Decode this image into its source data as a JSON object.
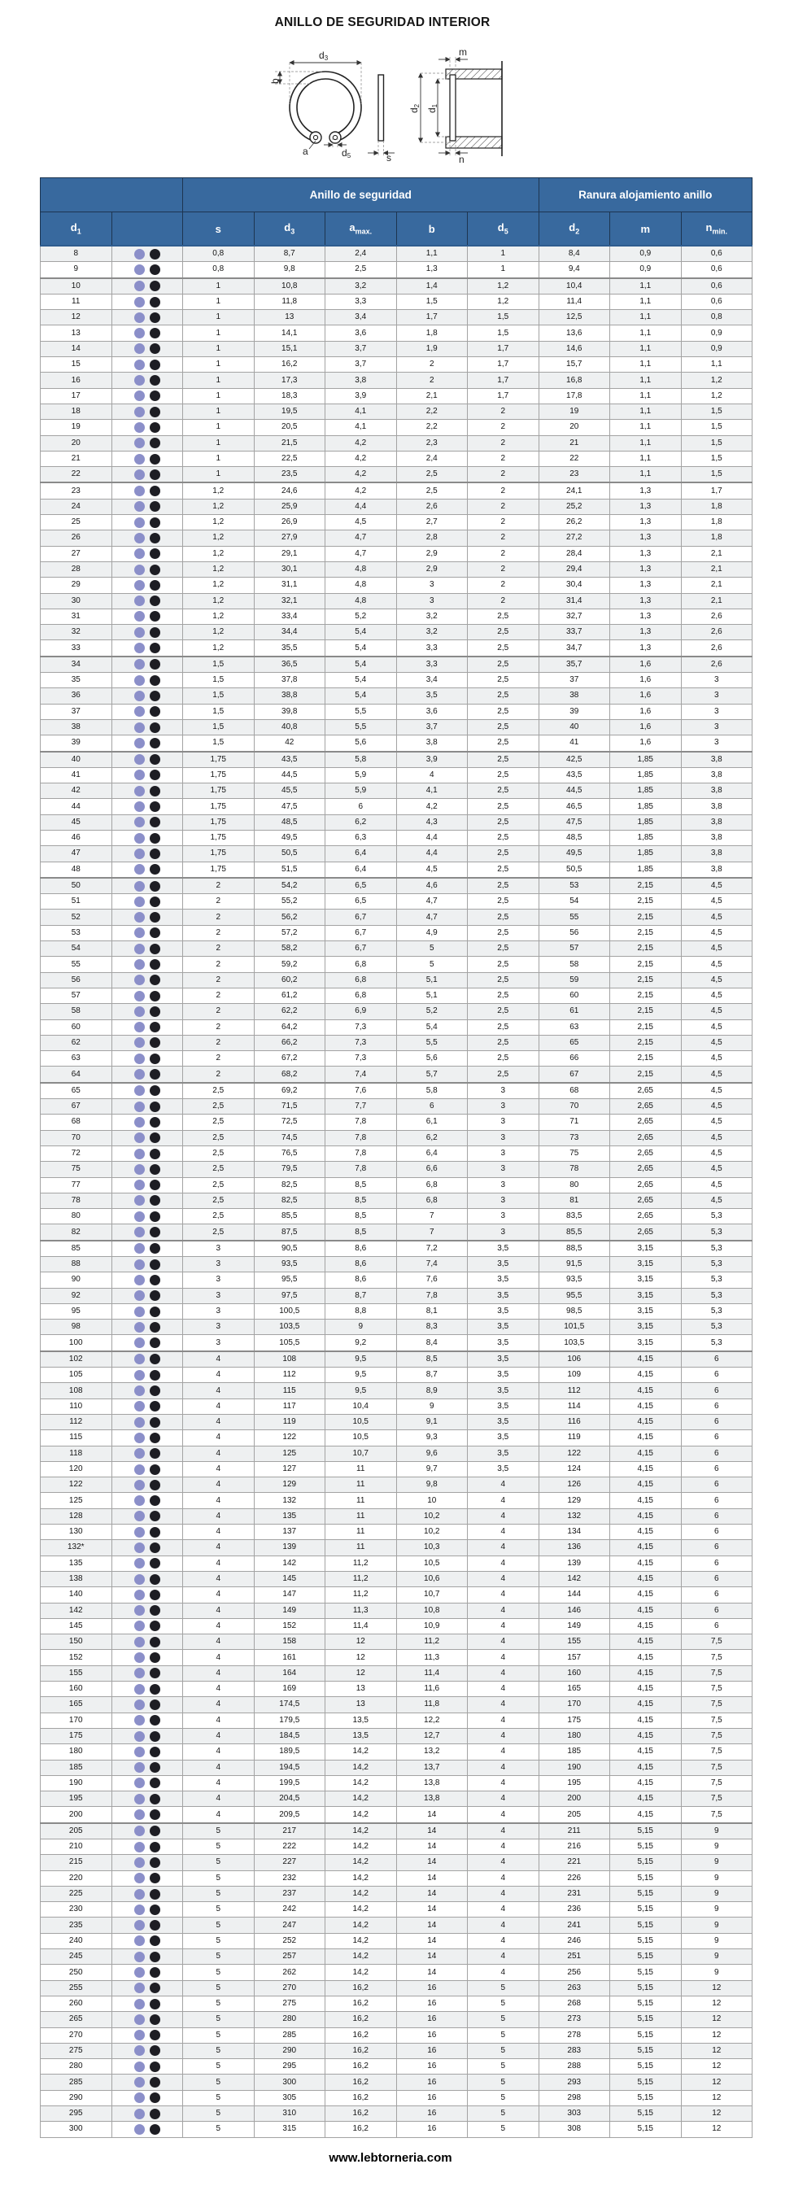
{
  "page": {
    "title": "ANILLO DE SEGURIDAD INTERIOR",
    "footer_url": "www.lebtorneria.com"
  },
  "colors": {
    "header_bg": "#38699e",
    "header_border": "#1d3550",
    "dot_lavender": "#8b8fc9",
    "dot_black": "#1e1e24",
    "row_stripe": "#eef0f1"
  },
  "diagram": {
    "labels": {
      "d3": {
        "main": "d",
        "sub": "3"
      },
      "b": {
        "main": "b",
        "sub": ""
      },
      "a": {
        "main": "a",
        "sub": ""
      },
      "d5": {
        "main": "d",
        "sub": "5"
      },
      "s": {
        "main": "s",
        "sub": ""
      },
      "m": {
        "main": "m",
        "sub": ""
      },
      "d2": {
        "main": "d",
        "sub": "2"
      },
      "d1": {
        "main": "d",
        "sub": "1"
      },
      "n": {
        "main": "n",
        "sub": ""
      }
    }
  },
  "table": {
    "group_headers": [
      {
        "label": "",
        "span": 2
      },
      {
        "label": "Anillo de seguridad",
        "span": 5
      },
      {
        "label": "Ranura alojamiento anillo",
        "span": 3
      }
    ],
    "columns": [
      {
        "main": "d",
        "sub": "1"
      },
      {
        "main": "",
        "sub": ""
      },
      {
        "main": "s",
        "sub": ""
      },
      {
        "main": "d",
        "sub": "3"
      },
      {
        "main": "a",
        "sub": "max."
      },
      {
        "main": "b",
        "sub": ""
      },
      {
        "main": "d",
        "sub": "5"
      },
      {
        "main": "d",
        "sub": "2"
      },
      {
        "main": "m",
        "sub": ""
      },
      {
        "main": "n",
        "sub": "min."
      }
    ],
    "rows": [
      [
        "8",
        "0,8",
        "8,7",
        "2,4",
        "1,1",
        "1",
        "8,4",
        "0,9",
        "0,6"
      ],
      [
        "9",
        "0,8",
        "9,8",
        "2,5",
        "1,3",
        "1",
        "9,4",
        "0,9",
        "0,6"
      ],
      [
        "10",
        "1",
        "10,8",
        "3,2",
        "1,4",
        "1,2",
        "10,4",
        "1,1",
        "0,6"
      ],
      [
        "11",
        "1",
        "11,8",
        "3,3",
        "1,5",
        "1,2",
        "11,4",
        "1,1",
        "0,6"
      ],
      [
        "12",
        "1",
        "13",
        "3,4",
        "1,7",
        "1,5",
        "12,5",
        "1,1",
        "0,8"
      ],
      [
        "13",
        "1",
        "14,1",
        "3,6",
        "1,8",
        "1,5",
        "13,6",
        "1,1",
        "0,9"
      ],
      [
        "14",
        "1",
        "15,1",
        "3,7",
        "1,9",
        "1,7",
        "14,6",
        "1,1",
        "0,9"
      ],
      [
        "15",
        "1",
        "16,2",
        "3,7",
        "2",
        "1,7",
        "15,7",
        "1,1",
        "1,1"
      ],
      [
        "16",
        "1",
        "17,3",
        "3,8",
        "2",
        "1,7",
        "16,8",
        "1,1",
        "1,2"
      ],
      [
        "17",
        "1",
        "18,3",
        "3,9",
        "2,1",
        "1,7",
        "17,8",
        "1,1",
        "1,2"
      ],
      [
        "18",
        "1",
        "19,5",
        "4,1",
        "2,2",
        "2",
        "19",
        "1,1",
        "1,5"
      ],
      [
        "19",
        "1",
        "20,5",
        "4,1",
        "2,2",
        "2",
        "20",
        "1,1",
        "1,5"
      ],
      [
        "20",
        "1",
        "21,5",
        "4,2",
        "2,3",
        "2",
        "21",
        "1,1",
        "1,5"
      ],
      [
        "21",
        "1",
        "22,5",
        "4,2",
        "2,4",
        "2",
        "22",
        "1,1",
        "1,5"
      ],
      [
        "22",
        "1",
        "23,5",
        "4,2",
        "2,5",
        "2",
        "23",
        "1,1",
        "1,5"
      ],
      [
        "23",
        "1,2",
        "24,6",
        "4,2",
        "2,5",
        "2",
        "24,1",
        "1,3",
        "1,7"
      ],
      [
        "24",
        "1,2",
        "25,9",
        "4,4",
        "2,6",
        "2",
        "25,2",
        "1,3",
        "1,8"
      ],
      [
        "25",
        "1,2",
        "26,9",
        "4,5",
        "2,7",
        "2",
        "26,2",
        "1,3",
        "1,8"
      ],
      [
        "26",
        "1,2",
        "27,9",
        "4,7",
        "2,8",
        "2",
        "27,2",
        "1,3",
        "1,8"
      ],
      [
        "27",
        "1,2",
        "29,1",
        "4,7",
        "2,9",
        "2",
        "28,4",
        "1,3",
        "2,1"
      ],
      [
        "28",
        "1,2",
        "30,1",
        "4,8",
        "2,9",
        "2",
        "29,4",
        "1,3",
        "2,1"
      ],
      [
        "29",
        "1,2",
        "31,1",
        "4,8",
        "3",
        "2",
        "30,4",
        "1,3",
        "2,1"
      ],
      [
        "30",
        "1,2",
        "32,1",
        "4,8",
        "3",
        "2",
        "31,4",
        "1,3",
        "2,1"
      ],
      [
        "31",
        "1,2",
        "33,4",
        "5,2",
        "3,2",
        "2,5",
        "32,7",
        "1,3",
        "2,6"
      ],
      [
        "32",
        "1,2",
        "34,4",
        "5,4",
        "3,2",
        "2,5",
        "33,7",
        "1,3",
        "2,6"
      ],
      [
        "33",
        "1,2",
        "35,5",
        "5,4",
        "3,3",
        "2,5",
        "34,7",
        "1,3",
        "2,6"
      ],
      [
        "34",
        "1,5",
        "36,5",
        "5,4",
        "3,3",
        "2,5",
        "35,7",
        "1,6",
        "2,6"
      ],
      [
        "35",
        "1,5",
        "37,8",
        "5,4",
        "3,4",
        "2,5",
        "37",
        "1,6",
        "3"
      ],
      [
        "36",
        "1,5",
        "38,8",
        "5,4",
        "3,5",
        "2,5",
        "38",
        "1,6",
        "3"
      ],
      [
        "37",
        "1,5",
        "39,8",
        "5,5",
        "3,6",
        "2,5",
        "39",
        "1,6",
        "3"
      ],
      [
        "38",
        "1,5",
        "40,8",
        "5,5",
        "3,7",
        "2,5",
        "40",
        "1,6",
        "3"
      ],
      [
        "39",
        "1,5",
        "42",
        "5,6",
        "3,8",
        "2,5",
        "41",
        "1,6",
        "3"
      ],
      [
        "40",
        "1,75",
        "43,5",
        "5,8",
        "3,9",
        "2,5",
        "42,5",
        "1,85",
        "3,8"
      ],
      [
        "41",
        "1,75",
        "44,5",
        "5,9",
        "4",
        "2,5",
        "43,5",
        "1,85",
        "3,8"
      ],
      [
        "42",
        "1,75",
        "45,5",
        "5,9",
        "4,1",
        "2,5",
        "44,5",
        "1,85",
        "3,8"
      ],
      [
        "44",
        "1,75",
        "47,5",
        "6",
        "4,2",
        "2,5",
        "46,5",
        "1,85",
        "3,8"
      ],
      [
        "45",
        "1,75",
        "48,5",
        "6,2",
        "4,3",
        "2,5",
        "47,5",
        "1,85",
        "3,8"
      ],
      [
        "46",
        "1,75",
        "49,5",
        "6,3",
        "4,4",
        "2,5",
        "48,5",
        "1,85",
        "3,8"
      ],
      [
        "47",
        "1,75",
        "50,5",
        "6,4",
        "4,4",
        "2,5",
        "49,5",
        "1,85",
        "3,8"
      ],
      [
        "48",
        "1,75",
        "51,5",
        "6,4",
        "4,5",
        "2,5",
        "50,5",
        "1,85",
        "3,8"
      ],
      [
        "50",
        "2",
        "54,2",
        "6,5",
        "4,6",
        "2,5",
        "53",
        "2,15",
        "4,5"
      ],
      [
        "51",
        "2",
        "55,2",
        "6,5",
        "4,7",
        "2,5",
        "54",
        "2,15",
        "4,5"
      ],
      [
        "52",
        "2",
        "56,2",
        "6,7",
        "4,7",
        "2,5",
        "55",
        "2,15",
        "4,5"
      ],
      [
        "53",
        "2",
        "57,2",
        "6,7",
        "4,9",
        "2,5",
        "56",
        "2,15",
        "4,5"
      ],
      [
        "54",
        "2",
        "58,2",
        "6,7",
        "5",
        "2,5",
        "57",
        "2,15",
        "4,5"
      ],
      [
        "55",
        "2",
        "59,2",
        "6,8",
        "5",
        "2,5",
        "58",
        "2,15",
        "4,5"
      ],
      [
        "56",
        "2",
        "60,2",
        "6,8",
        "5,1",
        "2,5",
        "59",
        "2,15",
        "4,5"
      ],
      [
        "57",
        "2",
        "61,2",
        "6,8",
        "5,1",
        "2,5",
        "60",
        "2,15",
        "4,5"
      ],
      [
        "58",
        "2",
        "62,2",
        "6,9",
        "5,2",
        "2,5",
        "61",
        "2,15",
        "4,5"
      ],
      [
        "60",
        "2",
        "64,2",
        "7,3",
        "5,4",
        "2,5",
        "63",
        "2,15",
        "4,5"
      ],
      [
        "62",
        "2",
        "66,2",
        "7,3",
        "5,5",
        "2,5",
        "65",
        "2,15",
        "4,5"
      ],
      [
        "63",
        "2",
        "67,2",
        "7,3",
        "5,6",
        "2,5",
        "66",
        "2,15",
        "4,5"
      ],
      [
        "64",
        "2",
        "68,2",
        "7,4",
        "5,7",
        "2,5",
        "67",
        "2,15",
        "4,5"
      ],
      [
        "65",
        "2,5",
        "69,2",
        "7,6",
        "5,8",
        "3",
        "68",
        "2,65",
        "4,5"
      ],
      [
        "67",
        "2,5",
        "71,5",
        "7,7",
        "6",
        "3",
        "70",
        "2,65",
        "4,5"
      ],
      [
        "68",
        "2,5",
        "72,5",
        "7,8",
        "6,1",
        "3",
        "71",
        "2,65",
        "4,5"
      ],
      [
        "70",
        "2,5",
        "74,5",
        "7,8",
        "6,2",
        "3",
        "73",
        "2,65",
        "4,5"
      ],
      [
        "72",
        "2,5",
        "76,5",
        "7,8",
        "6,4",
        "3",
        "75",
        "2,65",
        "4,5"
      ],
      [
        "75",
        "2,5",
        "79,5",
        "7,8",
        "6,6",
        "3",
        "78",
        "2,65",
        "4,5"
      ],
      [
        "77",
        "2,5",
        "82,5",
        "8,5",
        "6,8",
        "3",
        "80",
        "2,65",
        "4,5"
      ],
      [
        "78",
        "2,5",
        "82,5",
        "8,5",
        "6,8",
        "3",
        "81",
        "2,65",
        "4,5"
      ],
      [
        "80",
        "2,5",
        "85,5",
        "8,5",
        "7",
        "3",
        "83,5",
        "2,65",
        "5,3"
      ],
      [
        "82",
        "2,5",
        "87,5",
        "8,5",
        "7",
        "3",
        "85,5",
        "2,65",
        "5,3"
      ],
      [
        "85",
        "3",
        "90,5",
        "8,6",
        "7,2",
        "3,5",
        "88,5",
        "3,15",
        "5,3"
      ],
      [
        "88",
        "3",
        "93,5",
        "8,6",
        "7,4",
        "3,5",
        "91,5",
        "3,15",
        "5,3"
      ],
      [
        "90",
        "3",
        "95,5",
        "8,6",
        "7,6",
        "3,5",
        "93,5",
        "3,15",
        "5,3"
      ],
      [
        "92",
        "3",
        "97,5",
        "8,7",
        "7,8",
        "3,5",
        "95,5",
        "3,15",
        "5,3"
      ],
      [
        "95",
        "3",
        "100,5",
        "8,8",
        "8,1",
        "3,5",
        "98,5",
        "3,15",
        "5,3"
      ],
      [
        "98",
        "3",
        "103,5",
        "9",
        "8,3",
        "3,5",
        "101,5",
        "3,15",
        "5,3"
      ],
      [
        "100",
        "3",
        "105,5",
        "9,2",
        "8,4",
        "3,5",
        "103,5",
        "3,15",
        "5,3"
      ],
      [
        "102",
        "4",
        "108",
        "9,5",
        "8,5",
        "3,5",
        "106",
        "4,15",
        "6"
      ],
      [
        "105",
        "4",
        "112",
        "9,5",
        "8,7",
        "3,5",
        "109",
        "4,15",
        "6"
      ],
      [
        "108",
        "4",
        "115",
        "9,5",
        "8,9",
        "3,5",
        "112",
        "4,15",
        "6"
      ],
      [
        "110",
        "4",
        "117",
        "10,4",
        "9",
        "3,5",
        "114",
        "4,15",
        "6"
      ],
      [
        "112",
        "4",
        "119",
        "10,5",
        "9,1",
        "3,5",
        "116",
        "4,15",
        "6"
      ],
      [
        "115",
        "4",
        "122",
        "10,5",
        "9,3",
        "3,5",
        "119",
        "4,15",
        "6"
      ],
      [
        "118",
        "4",
        "125",
        "10,7",
        "9,6",
        "3,5",
        "122",
        "4,15",
        "6"
      ],
      [
        "120",
        "4",
        "127",
        "11",
        "9,7",
        "3,5",
        "124",
        "4,15",
        "6"
      ],
      [
        "122",
        "4",
        "129",
        "11",
        "9,8",
        "4",
        "126",
        "4,15",
        "6"
      ],
      [
        "125",
        "4",
        "132",
        "11",
        "10",
        "4",
        "129",
        "4,15",
        "6"
      ],
      [
        "128",
        "4",
        "135",
        "11",
        "10,2",
        "4",
        "132",
        "4,15",
        "6"
      ],
      [
        "130",
        "4",
        "137",
        "11",
        "10,2",
        "4",
        "134",
        "4,15",
        "6"
      ],
      [
        "132*",
        "4",
        "139",
        "11",
        "10,3",
        "4",
        "136",
        "4,15",
        "6"
      ],
      [
        "135",
        "4",
        "142",
        "11,2",
        "10,5",
        "4",
        "139",
        "4,15",
        "6"
      ],
      [
        "138",
        "4",
        "145",
        "11,2",
        "10,6",
        "4",
        "142",
        "4,15",
        "6"
      ],
      [
        "140",
        "4",
        "147",
        "11,2",
        "10,7",
        "4",
        "144",
        "4,15",
        "6"
      ],
      [
        "142",
        "4",
        "149",
        "11,3",
        "10,8",
        "4",
        "146",
        "4,15",
        "6"
      ],
      [
        "145",
        "4",
        "152",
        "11,4",
        "10,9",
        "4",
        "149",
        "4,15",
        "6"
      ],
      [
        "150",
        "4",
        "158",
        "12",
        "11,2",
        "4",
        "155",
        "4,15",
        "7,5"
      ],
      [
        "152",
        "4",
        "161",
        "12",
        "11,3",
        "4",
        "157",
        "4,15",
        "7,5"
      ],
      [
        "155",
        "4",
        "164",
        "12",
        "11,4",
        "4",
        "160",
        "4,15",
        "7,5"
      ],
      [
        "160",
        "4",
        "169",
        "13",
        "11,6",
        "4",
        "165",
        "4,15",
        "7,5"
      ],
      [
        "165",
        "4",
        "174,5",
        "13",
        "11,8",
        "4",
        "170",
        "4,15",
        "7,5"
      ],
      [
        "170",
        "4",
        "179,5",
        "13,5",
        "12,2",
        "4",
        "175",
        "4,15",
        "7,5"
      ],
      [
        "175",
        "4",
        "184,5",
        "13,5",
        "12,7",
        "4",
        "180",
        "4,15",
        "7,5"
      ],
      [
        "180",
        "4",
        "189,5",
        "14,2",
        "13,2",
        "4",
        "185",
        "4,15",
        "7,5"
      ],
      [
        "185",
        "4",
        "194,5",
        "14,2",
        "13,7",
        "4",
        "190",
        "4,15",
        "7,5"
      ],
      [
        "190",
        "4",
        "199,5",
        "14,2",
        "13,8",
        "4",
        "195",
        "4,15",
        "7,5"
      ],
      [
        "195",
        "4",
        "204,5",
        "14,2",
        "13,8",
        "4",
        "200",
        "4,15",
        "7,5"
      ],
      [
        "200",
        "4",
        "209,5",
        "14,2",
        "14",
        "4",
        "205",
        "4,15",
        "7,5"
      ],
      [
        "205",
        "5",
        "217",
        "14,2",
        "14",
        "4",
        "211",
        "5,15",
        "9"
      ],
      [
        "210",
        "5",
        "222",
        "14,2",
        "14",
        "4",
        "216",
        "5,15",
        "9"
      ],
      [
        "215",
        "5",
        "227",
        "14,2",
        "14",
        "4",
        "221",
        "5,15",
        "9"
      ],
      [
        "220",
        "5",
        "232",
        "14,2",
        "14",
        "4",
        "226",
        "5,15",
        "9"
      ],
      [
        "225",
        "5",
        "237",
        "14,2",
        "14",
        "4",
        "231",
        "5,15",
        "9"
      ],
      [
        "230",
        "5",
        "242",
        "14,2",
        "14",
        "4",
        "236",
        "5,15",
        "9"
      ],
      [
        "235",
        "5",
        "247",
        "14,2",
        "14",
        "4",
        "241",
        "5,15",
        "9"
      ],
      [
        "240",
        "5",
        "252",
        "14,2",
        "14",
        "4",
        "246",
        "5,15",
        "9"
      ],
      [
        "245",
        "5",
        "257",
        "14,2",
        "14",
        "4",
        "251",
        "5,15",
        "9"
      ],
      [
        "250",
        "5",
        "262",
        "14,2",
        "14",
        "4",
        "256",
        "5,15",
        "9"
      ],
      [
        "255",
        "5",
        "270",
        "16,2",
        "16",
        "5",
        "263",
        "5,15",
        "12"
      ],
      [
        "260",
        "5",
        "275",
        "16,2",
        "16",
        "5",
        "268",
        "5,15",
        "12"
      ],
      [
        "265",
        "5",
        "280",
        "16,2",
        "16",
        "5",
        "273",
        "5,15",
        "12"
      ],
      [
        "270",
        "5",
        "285",
        "16,2",
        "16",
        "5",
        "278",
        "5,15",
        "12"
      ],
      [
        "275",
        "5",
        "290",
        "16,2",
        "16",
        "5",
        "283",
        "5,15",
        "12"
      ],
      [
        "280",
        "5",
        "295",
        "16,2",
        "16",
        "5",
        "288",
        "5,15",
        "12"
      ],
      [
        "285",
        "5",
        "300",
        "16,2",
        "16",
        "5",
        "293",
        "5,15",
        "12"
      ],
      [
        "290",
        "5",
        "305",
        "16,2",
        "16",
        "5",
        "298",
        "5,15",
        "12"
      ],
      [
        "295",
        "5",
        "310",
        "16,2",
        "16",
        "5",
        "303",
        "5,15",
        "12"
      ],
      [
        "300",
        "5",
        "315",
        "16,2",
        "16",
        "5",
        "308",
        "5,15",
        "12"
      ]
    ]
  }
}
